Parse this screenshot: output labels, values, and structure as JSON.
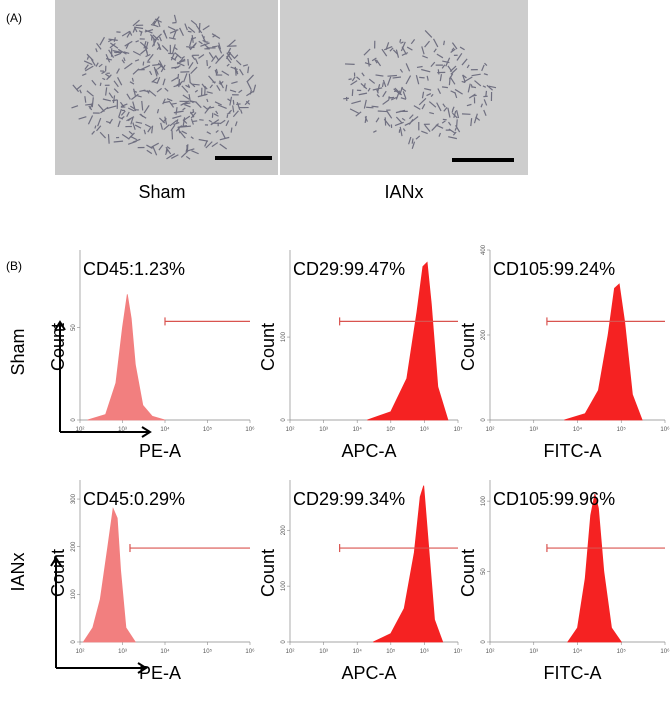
{
  "panel_a": {
    "label": "(A)",
    "images": [
      {
        "caption": "Sham"
      },
      {
        "caption": "IANx"
      }
    ]
  },
  "panel_b": {
    "label": "(B)",
    "row_labels": [
      "Sham",
      "IANx"
    ]
  },
  "chart_data": [
    {
      "type": "area",
      "title": "CD45:1.23%",
      "xlabel": "PE-A",
      "ylabel": "Count",
      "xscale": "log",
      "color": "#f27f7f",
      "x": [
        150,
        400,
        700,
        1000,
        1300,
        1600,
        2000,
        3000,
        5000,
        10000
      ],
      "values": [
        0,
        3,
        20,
        50,
        68,
        55,
        30,
        8,
        2,
        0
      ],
      "xlim": [
        100,
        1000000
      ],
      "ylim": [
        0,
        92
      ],
      "gate": [
        10000,
        1000000
      ],
      "xticks": [
        {
          "value": 100,
          "label": "10²"
        },
        {
          "value": 1000,
          "label": "10³"
        },
        {
          "value": 10000,
          "label": "10⁴"
        },
        {
          "value": 100000,
          "label": "10⁵"
        },
        {
          "value": 1000000,
          "label": "10⁶"
        }
      ],
      "yticks": [
        0,
        50
      ]
    },
    {
      "type": "area",
      "title": "CD29:99.47%",
      "xlabel": "APC-A",
      "ylabel": "Count",
      "xscale": "log",
      "color": "#f52222",
      "x": [
        20000,
        100000,
        300000,
        600000,
        900000,
        1200000,
        1600000,
        2500000,
        5000000
      ],
      "values": [
        0,
        10,
        50,
        130,
        185,
        190,
        140,
        40,
        0
      ],
      "xlim": [
        100,
        10000000
      ],
      "ylim": [
        0,
        205
      ],
      "gate": [
        3000,
        10000000
      ],
      "xticks": [
        {
          "value": 100,
          "label": "10²"
        },
        {
          "value": 1000,
          "label": "10³"
        },
        {
          "value": 10000,
          "label": "10⁴"
        },
        {
          "value": 100000,
          "label": "10⁵"
        },
        {
          "value": 1000000,
          "label": "10⁶"
        },
        {
          "value": 10000000,
          "label": "10⁷"
        }
      ],
      "yticks": [
        0,
        100
      ]
    },
    {
      "type": "area",
      "title": "CD105:99.24%",
      "xlabel": "FITC-A",
      "ylabel": "Count",
      "xscale": "log",
      "color": "#f52222",
      "x": [
        5000,
        15000,
        30000,
        50000,
        70000,
        90000,
        120000,
        180000,
        300000
      ],
      "values": [
        0,
        15,
        70,
        200,
        310,
        320,
        230,
        60,
        0
      ],
      "xlim": [
        100,
        1000000
      ],
      "ylim": [
        0,
        400
      ],
      "gate": [
        2000,
        1000000
      ],
      "xticks": [
        {
          "value": 100,
          "label": "10²"
        },
        {
          "value": 1000,
          "label": "10³"
        },
        {
          "value": 10000,
          "label": "10⁴"
        },
        {
          "value": 100000,
          "label": "10⁵"
        },
        {
          "value": 1000000,
          "label": "10⁶"
        }
      ],
      "yticks": [
        0,
        200,
        400
      ]
    },
    {
      "type": "area",
      "title": "CD45:0.29%",
      "xlabel": "PE-A",
      "ylabel": "Count",
      "xscale": "log",
      "color": "#f27f7f",
      "x": [
        120,
        200,
        300,
        450,
        600,
        750,
        900,
        1200,
        2000
      ],
      "values": [
        0,
        30,
        90,
        200,
        280,
        260,
        150,
        30,
        0
      ],
      "xlim": [
        100,
        1000000
      ],
      "ylim": [
        0,
        340
      ],
      "gate": [
        1500,
        1000000
      ],
      "xticks": [
        {
          "value": 100,
          "label": "10²"
        },
        {
          "value": 1000,
          "label": "10³"
        },
        {
          "value": 10000,
          "label": "10⁴"
        },
        {
          "value": 100000,
          "label": "10⁵"
        },
        {
          "value": 1000000,
          "label": "10⁶"
        }
      ],
      "yticks": [
        0,
        100,
        200,
        300
      ]
    },
    {
      "type": "area",
      "title": "CD29:99.34%",
      "xlabel": "APC-A",
      "ylabel": "Count",
      "xscale": "log",
      "color": "#f52222",
      "x": [
        30000,
        100000,
        250000,
        500000,
        750000,
        950000,
        1300000,
        2000000,
        3500000
      ],
      "values": [
        0,
        15,
        60,
        160,
        260,
        280,
        180,
        40,
        0
      ],
      "xlim": [
        100,
        10000000
      ],
      "ylim": [
        0,
        290
      ],
      "gate": [
        3000,
        10000000
      ],
      "xticks": [
        {
          "value": 100,
          "label": "10²"
        },
        {
          "value": 1000,
          "label": "10³"
        },
        {
          "value": 10000,
          "label": "10⁴"
        },
        {
          "value": 100000,
          "label": "10⁵"
        },
        {
          "value": 1000000,
          "label": "10⁶"
        },
        {
          "value": 10000000,
          "label": "10⁷"
        }
      ],
      "yticks": [
        0,
        100,
        200
      ]
    },
    {
      "type": "area",
      "title": "CD105:99.96%",
      "xlabel": "FITC-A",
      "ylabel": "Count",
      "xscale": "log",
      "color": "#f52222",
      "x": [
        6000,
        10000,
        15000,
        20000,
        25000,
        30000,
        40000,
        60000,
        100000
      ],
      "values": [
        0,
        10,
        45,
        90,
        105,
        95,
        50,
        10,
        0
      ],
      "xlim": [
        100,
        1000000
      ],
      "ylim": [
        0,
        115
      ],
      "gate": [
        2000,
        1000000
      ],
      "xticks": [
        {
          "value": 100,
          "label": "10²"
        },
        {
          "value": 1000,
          "label": "10³"
        },
        {
          "value": 10000,
          "label": "10⁴"
        },
        {
          "value": 100000,
          "label": "10⁵"
        },
        {
          "value": 1000000,
          "label": "10⁶"
        }
      ],
      "yticks": [
        0,
        50,
        100
      ]
    }
  ]
}
